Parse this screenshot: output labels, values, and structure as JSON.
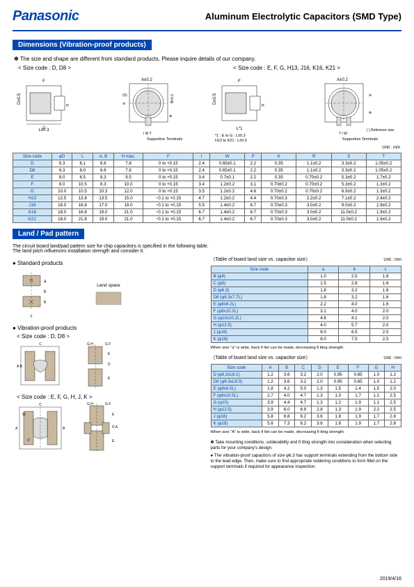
{
  "brand": "Panasonic",
  "title": "Aluminum Electrolytic Capacitors (SMD Type)",
  "section1": {
    "header": "Dimensions (Vibration-proof products)",
    "note": "✽ The size and shape are different from standard products. Please inquire details of our company.",
    "label_left": "< Size code : D, D8 >",
    "label_right": "< Size code : E, F, G, H13, J16, K16, K21 >",
    "support_label": "Supportive Terminals",
    "ref_label": "(  ) Reference size",
    "star_note": "*1 : E to G : L±0.3\nH13 to K21 : L±0.5",
    "unit": "Unit : mm",
    "headers": [
      "Size code",
      "φD",
      "L",
      "A, B",
      "H max.",
      "F",
      "I",
      "W",
      "P",
      "K",
      "R",
      "S",
      "T"
    ],
    "rows": [
      [
        "D",
        "6.3",
        "6.1",
        "6.6",
        "7.8",
        "0 to +0.15",
        "2.4",
        "0.65±0.1",
        "2.2",
        "0.35 ",
        "1.1±0.2",
        "3.3±0.2",
        "1.05±0.2"
      ],
      [
        "D8",
        "6.3",
        "8.0",
        "6.6",
        "7.8",
        "0 to +0.15",
        "2.4",
        "0.65±0.1",
        "2.2",
        "0.35 ",
        "1.1±0.2",
        "3.3±0.2",
        "1.05±0.2"
      ],
      [
        "E",
        "8.0",
        "6.5",
        "8.3",
        "9.5",
        "0 to +0.15",
        "3.4",
        "0.7±0.1",
        "2.2",
        "0.35 ",
        "0.70±0.2",
        "5.3±0.2",
        "1.7±0.2"
      ],
      [
        "F",
        "8.0",
        "10.5",
        "8.3",
        "10.0",
        "0 to +0.15",
        "3.4",
        "1.2±0.2",
        "3.1",
        "0.70±0.2",
        "0.70±0.2",
        "5.3±0.2",
        "1.3±0.2"
      ],
      [
        "G",
        "10.0",
        "10.5",
        "10.3",
        "12.0",
        "0 to +0.15",
        "3.5",
        "1.2±0.2",
        "4.6",
        "0.70±0.2",
        "0.70±0.2",
        "6.9±0.2",
        "1.3±0.2"
      ],
      [
        "H13",
        "12.5",
        "13.8",
        "13.5",
        "15.0",
        "−0.1 to +0.15",
        "4.7",
        "1.2±0.2",
        "4.4",
        "0.70±0.3",
        "2.2±0.2",
        "7.1±0.2",
        "2.4±0.2"
      ],
      [
        "J16",
        "16.0",
        "16.8",
        "17.0",
        "19.0",
        "−0.1 to +0.15",
        "5.5",
        "1.4±0.2",
        "6.7",
        "0.70±0.3",
        "3.0±0.2",
        "9.0±0.2",
        "1.9±0.2"
      ],
      [
        "K16",
        "18.0",
        "16.8",
        "19.0",
        "21.0",
        "−0.1 to +0.15",
        "6.7",
        "1.4±0.2",
        "6.7",
        "0.70±0.3",
        "3.0±0.2",
        "11.0±0.2",
        "1.9±0.2"
      ],
      [
        "K21",
        "18.0",
        "21.8",
        "19.0",
        "21.0",
        "−0.1 to +0.15",
        "6.7",
        "1.4±0.2",
        "6.7",
        "0.70±0.3",
        "3.0±0.2",
        "11.0±0.2",
        "1.9±0.2"
      ]
    ]
  },
  "section2": {
    "header": "Land / Pad pattern",
    "intro": "The circuit board land/pad pattern size for chip capacitors is specified in the following table.\nThe land pitch influences installation strength and consider it.",
    "std_title": "● Standard products",
    "vib_title": "● Vibration-proof products",
    "vib_label1": "< Size code : D, D8 >",
    "vib_label2": "< Size code : E, F, G, H, J, K >",
    "land_space": "Land space",
    "table_a": {
      "caption": "〈Table of board land size vs. capacitor size〉",
      "unit": "Unit : mm",
      "headers": [
        "Size code",
        "a",
        "b",
        "c"
      ],
      "rows": [
        [
          "B (φ4)",
          "1.0",
          "2.5",
          "1.6"
        ],
        [
          "C (φ5)",
          "1.5",
          "2.8",
          "1.6"
        ],
        [
          "D (φ6.3)",
          "1.8",
          "3.2",
          "1.6"
        ],
        [
          "D8 (φ6.3x7.7L)",
          "1.8",
          "3.2",
          "1.6"
        ],
        [
          "E (φ8x6.2L)",
          "2.2",
          "4.0",
          "1.6"
        ],
        [
          "F (φ8x10.2L)",
          "3.1",
          "4.0",
          "2.0"
        ],
        [
          "G (φ10x10.2L)",
          "4.6",
          "4.1",
          "2.0"
        ],
        [
          "H (φ12.5)",
          "4.0",
          "5.7",
          "2.0"
        ],
        [
          "J (φ16)",
          "6.0",
          "6.5",
          "2.5"
        ],
        [
          "K (φ18)",
          "6.0",
          "7.5",
          "2.5"
        ]
      ],
      "footnote": "When size \"a\" is wide, back fi llet can be made, decreasing fi tting strength."
    },
    "table_b": {
      "caption": "〈Table of board land size vs. capacitor size〉",
      "unit": "Unit : mm",
      "headers": [
        "Size code",
        "A",
        "B",
        "C",
        "D",
        "E",
        "F",
        "G",
        "H"
      ],
      "rows": [
        [
          "D (φ6.3xL6.1)",
          "1.2",
          "3.6",
          "3.2",
          "2.0",
          "0.95",
          "0.65",
          "1.0",
          "1.2"
        ],
        [
          "D8 (φ6.3xL8.0)",
          "1.2",
          "3.6",
          "3.2",
          "2.0",
          "0.95",
          "0.65",
          "1.0",
          "1.2"
        ],
        [
          "E (φ8x6.5L)",
          "1.8",
          "4.2",
          "5.0",
          "1.3",
          "1.5",
          "1.4",
          "1.5",
          "2.0"
        ],
        [
          "F (φ8x10.5L)",
          "2.7",
          "4.0",
          "4.7",
          "1.3",
          "1.0",
          "1.7",
          "1.1",
          "2.5"
        ],
        [
          "G (φ10)",
          "3.9",
          "4.4",
          "4.7",
          "1.3",
          "1.2",
          "1.9",
          "1.1",
          "2.5"
        ],
        [
          "H (φ12.5)",
          "3.9",
          "6.0",
          "6.9",
          "2.8",
          "1.3",
          "1.9",
          "2.2",
          "2.5"
        ],
        [
          "J (φ16)",
          "5.8",
          "6.8",
          "6.2",
          "3.6",
          "1.8",
          "1.9",
          "1.7",
          "2.8"
        ],
        [
          "K (φ18)",
          "5.8",
          "7.3",
          "6.2",
          "3.6",
          "1.8",
          "1.9",
          "1.7",
          "2.8"
        ]
      ],
      "footnote": "When size \"A\" is wide, back fi llet can be made, decreasing fi tting strength."
    },
    "notes": [
      "✽ Take mounting conditions, solderability and fi tting strength into consideration when selecting parts for your company's design.",
      "● The vibration-proof capacitors of size φ6.3 has support terminals extending from the bottom side to the lead edge. Then, make sure to find appropriate soldering conditions to form fillet on the support terminals if required for appearance inspection."
    ]
  },
  "footer_date": "2019/4/16",
  "colors": {
    "brand_blue": "#0046ad",
    "header_bg": "#cce4f7"
  }
}
